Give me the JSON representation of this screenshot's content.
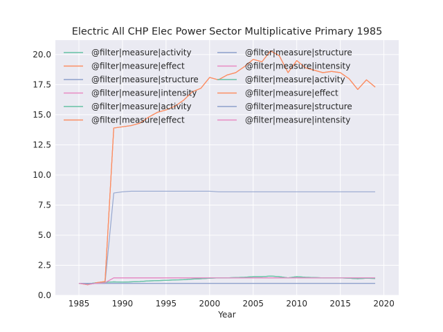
{
  "chart_data": {
    "type": "line",
    "title": "Electric All CHP Elec Power Sector Multiplicative Primary 1985",
    "xlabel": "Year",
    "ylabel": "",
    "xlim": [
      1982.3,
      2021.7
    ],
    "ylim": [
      0,
      21.2
    ],
    "xticks": [
      1985,
      1990,
      1995,
      2000,
      2005,
      2010,
      2015,
      2020
    ],
    "yticks": [
      0.0,
      2.5,
      5.0,
      7.5,
      10.0,
      12.5,
      15.0,
      17.5,
      20.0
    ],
    "grid": true,
    "legend_placement": "top-left",
    "x": [
      1985,
      1986,
      1987,
      1988,
      1989,
      1990,
      1991,
      1992,
      1993,
      1994,
      1995,
      1996,
      1997,
      1998,
      1999,
      2000,
      2001,
      2002,
      2003,
      2004,
      2005,
      2006,
      2007,
      2008,
      2009,
      2010,
      2011,
      2012,
      2013,
      2014,
      2015,
      2016,
      2017,
      2018,
      2019
    ],
    "series": [
      {
        "name": "@filter|measure|activity",
        "color": "#66c2a5",
        "values": [
          1.0,
          0.95,
          1.05,
          1.08,
          1.12,
          1.1,
          1.12,
          1.15,
          1.2,
          1.22,
          1.25,
          1.28,
          1.3,
          1.35,
          1.38,
          1.42,
          1.45,
          1.45,
          1.48,
          1.5,
          1.55,
          1.55,
          1.6,
          1.55,
          1.45,
          1.55,
          1.5,
          1.48,
          1.45,
          1.45,
          1.45,
          1.42,
          1.38,
          1.42,
          1.4
        ]
      },
      {
        "name": "@filter|measure|effect",
        "color": "#fc8d62",
        "values": [
          1.0,
          0.88,
          1.05,
          1.15,
          13.9,
          14.0,
          14.1,
          14.3,
          14.8,
          15.2,
          15.4,
          15.7,
          16.2,
          16.9,
          17.2,
          18.1,
          17.9,
          18.3,
          18.5,
          19.0,
          19.6,
          19.4,
          20.3,
          19.9,
          18.5,
          19.5,
          18.9,
          18.7,
          18.5,
          18.6,
          18.5,
          18.0,
          17.1,
          17.9,
          17.3
        ]
      },
      {
        "name": "@filter|measure|structure",
        "color": "#8da0cb",
        "values": [
          1.0,
          1.0,
          1.0,
          1.0,
          8.5,
          8.6,
          8.65,
          8.65,
          8.65,
          8.65,
          8.65,
          8.65,
          8.65,
          8.65,
          8.65,
          8.65,
          8.6,
          8.6,
          8.6,
          8.6,
          8.6,
          8.6,
          8.6,
          8.6,
          8.6,
          8.6,
          8.6,
          8.6,
          8.6,
          8.6,
          8.6,
          8.6,
          8.6,
          8.6,
          8.6
        ]
      },
      {
        "name": "@filter|measure|intensity",
        "color": "#e78ac3",
        "values": [
          1.0,
          0.9,
          1.0,
          1.05,
          1.45,
          1.45,
          1.45,
          1.45,
          1.45,
          1.45,
          1.45,
          1.45,
          1.45,
          1.45,
          1.45,
          1.45,
          1.45,
          1.45,
          1.45,
          1.45,
          1.45,
          1.45,
          1.45,
          1.45,
          1.45,
          1.45,
          1.45,
          1.45,
          1.45,
          1.45,
          1.45,
          1.45,
          1.45,
          1.45,
          1.45
        ]
      },
      {
        "name": "@filter|measure|activity",
        "color": "#66c2a5",
        "values": [
          1.0,
          0.95,
          1.05,
          1.08,
          1.12,
          1.1,
          1.12,
          1.15,
          1.2,
          1.22,
          1.25,
          1.28,
          1.3,
          1.35,
          1.38,
          1.42,
          1.45,
          1.45,
          1.48,
          1.5,
          1.55,
          1.55,
          1.6,
          1.55,
          1.45,
          1.55,
          1.5,
          1.48,
          1.45,
          1.45,
          1.45,
          1.42,
          1.38,
          1.42,
          1.4
        ]
      },
      {
        "name": "@filter|measure|effect",
        "color": "#fc8d62",
        "values": [
          1.0,
          0.88,
          1.05,
          1.15,
          13.9,
          14.0,
          14.1,
          14.3,
          14.8,
          15.2,
          15.4,
          15.7,
          16.2,
          16.9,
          17.2,
          18.1,
          17.9,
          18.3,
          18.5,
          19.0,
          19.6,
          19.4,
          20.3,
          19.9,
          18.5,
          19.5,
          18.9,
          18.7,
          18.5,
          18.6,
          18.5,
          18.0,
          17.1,
          17.9,
          17.3
        ]
      },
      {
        "name": "@filter|measure|structure",
        "color": "#8da0cb",
        "values": [
          1.0,
          1.0,
          1.0,
          1.0,
          1.0,
          1.0,
          1.0,
          1.0,
          1.0,
          1.0,
          1.0,
          1.0,
          1.0,
          1.0,
          1.0,
          1.0,
          1.0,
          1.0,
          1.0,
          1.0,
          1.0,
          1.0,
          1.0,
          1.0,
          1.0,
          1.0,
          1.0,
          1.0,
          1.0,
          1.0,
          1.0,
          1.0,
          1.0,
          1.0,
          1.0
        ]
      },
      {
        "name": "@filter|measure|intensity",
        "color": "#e78ac3",
        "values": [
          1.0,
          0.9,
          1.0,
          1.05,
          1.45,
          1.45,
          1.45,
          1.45,
          1.45,
          1.45,
          1.45,
          1.45,
          1.45,
          1.45,
          1.45,
          1.45,
          1.45,
          1.45,
          1.45,
          1.45,
          1.45,
          1.45,
          1.45,
          1.45,
          1.45,
          1.45,
          1.45,
          1.45,
          1.45,
          1.45,
          1.45,
          1.45,
          1.45,
          1.45,
          1.45
        ]
      },
      {
        "name": "@filter|measure|activity",
        "color": "#66c2a5",
        "values": [
          1.0,
          0.95,
          1.05,
          1.08,
          1.12,
          1.1,
          1.12,
          1.15,
          1.2,
          1.22,
          1.25,
          1.28,
          1.3,
          1.35,
          1.38,
          1.42,
          1.45,
          1.45,
          1.48,
          1.5,
          1.55,
          1.55,
          1.6,
          1.55,
          1.45,
          1.55,
          1.5,
          1.48,
          1.45,
          1.45,
          1.45,
          1.42,
          1.38,
          1.42,
          1.4
        ]
      },
      {
        "name": "@filter|measure|effect",
        "color": "#fc8d62",
        "values": [
          1.0,
          0.88,
          1.05,
          1.15,
          13.9,
          14.0,
          14.1,
          14.3,
          14.8,
          15.2,
          15.4,
          15.7,
          16.2,
          16.9,
          17.2,
          18.1,
          17.9,
          18.3,
          18.5,
          19.0,
          19.6,
          19.4,
          20.3,
          19.9,
          18.5,
          19.5,
          18.9,
          18.7,
          18.5,
          18.6,
          18.5,
          18.0,
          17.1,
          17.9,
          17.3
        ]
      },
      {
        "name": "@filter|measure|structure",
        "color": "#8da0cb",
        "values": [
          1.0,
          1.0,
          1.0,
          1.0,
          1.0,
          1.0,
          1.0,
          1.0,
          1.0,
          1.0,
          1.0,
          1.0,
          1.0,
          1.0,
          1.0,
          1.0,
          1.0,
          1.0,
          1.0,
          1.0,
          1.0,
          1.0,
          1.0,
          1.0,
          1.0,
          1.0,
          1.0,
          1.0,
          1.0,
          1.0,
          1.0,
          1.0,
          1.0,
          1.0,
          1.0
        ]
      },
      {
        "name": "@filter|measure|intensity",
        "color": "#e78ac3",
        "values": [
          1.0,
          0.9,
          1.0,
          1.05,
          1.45,
          1.45,
          1.45,
          1.45,
          1.45,
          1.45,
          1.45,
          1.45,
          1.45,
          1.45,
          1.45,
          1.45,
          1.45,
          1.45,
          1.45,
          1.45,
          1.45,
          1.45,
          1.45,
          1.45,
          1.45,
          1.45,
          1.45,
          1.45,
          1.45,
          1.45,
          1.45,
          1.45,
          1.45,
          1.45,
          1.45
        ]
      }
    ],
    "colors": {
      "background": "#eaeaf2",
      "grid": "#ffffff",
      "text": "#262626"
    }
  }
}
